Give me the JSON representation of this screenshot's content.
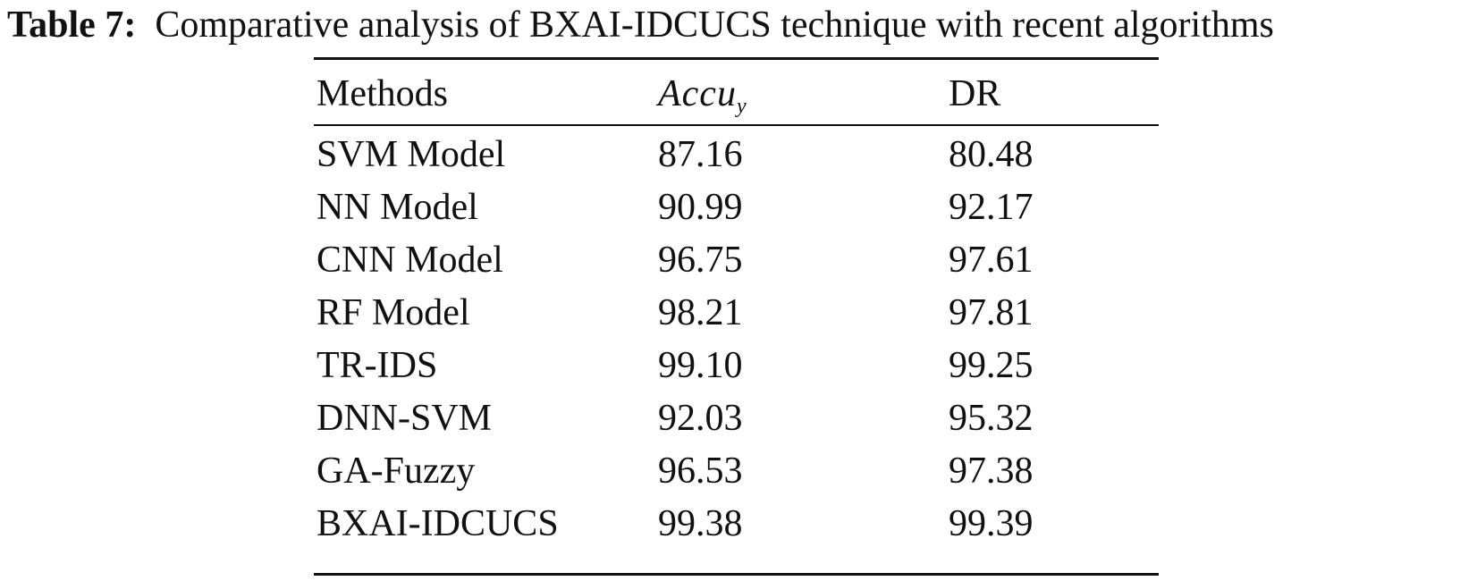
{
  "caption": {
    "label": "Table 7:",
    "text": "Comparative analysis of BXAI-IDCUCS technique with recent algorithms"
  },
  "table": {
    "headers": {
      "methods": "Methods",
      "accuracy_base": "Accu",
      "accuracy_sub": "y",
      "dr": "DR"
    },
    "rows": [
      {
        "method": "SVM Model",
        "accuracy": "87.16",
        "dr": "80.48"
      },
      {
        "method": "NN Model",
        "accuracy": "90.99",
        "dr": "92.17"
      },
      {
        "method": "CNN Model",
        "accuracy": "96.75",
        "dr": "97.61"
      },
      {
        "method": "RF Model",
        "accuracy": "98.21",
        "dr": "97.81"
      },
      {
        "method": "TR-IDS",
        "accuracy": "99.10",
        "dr": "99.25"
      },
      {
        "method": "DNN-SVM",
        "accuracy": "92.03",
        "dr": "95.32"
      },
      {
        "method": "GA-Fuzzy",
        "accuracy": "96.53",
        "dr": "97.38"
      },
      {
        "method": "BXAI-IDCUCS",
        "accuracy": "99.38",
        "dr": "99.39"
      }
    ]
  }
}
